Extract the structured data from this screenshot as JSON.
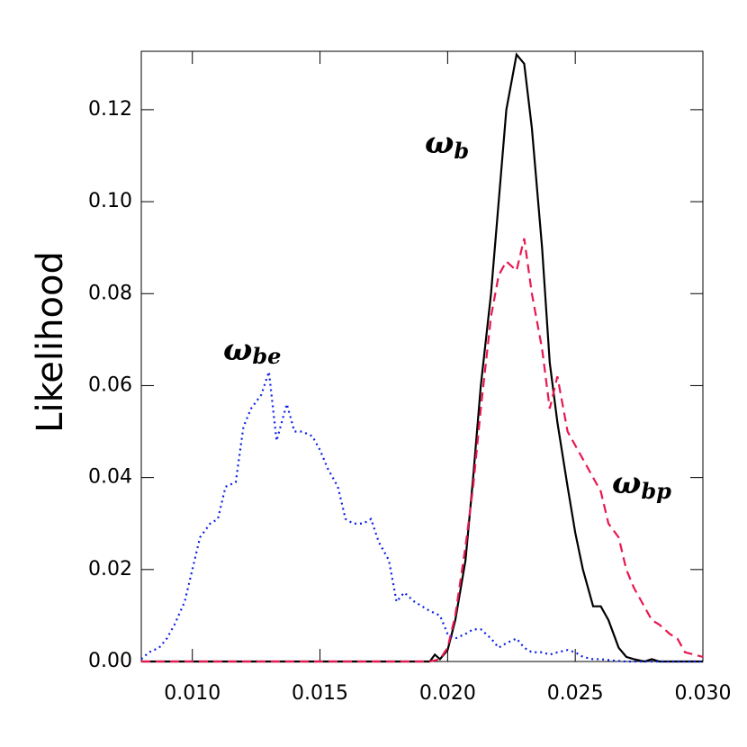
{
  "chart_data": {
    "type": "line",
    "y_label": "Likelihood",
    "xlim": [
      0.008,
      0.03
    ],
    "ylim": [
      0,
      0.1327
    ],
    "xticks": [
      {
        "value": 0.01,
        "label": "0.010"
      },
      {
        "value": 0.015,
        "label": "0.015"
      },
      {
        "value": 0.02,
        "label": "0.020"
      },
      {
        "value": 0.025,
        "label": "0.025"
      },
      {
        "value": 0.03,
        "label": "0.030"
      }
    ],
    "yticks": [
      {
        "value": 0,
        "label": "0.00"
      },
      {
        "value": 0.02,
        "label": "0.02"
      },
      {
        "value": 0.04,
        "label": "0.04"
      },
      {
        "value": 0.06,
        "label": "0.06"
      },
      {
        "value": 0.08,
        "label": "0.08"
      },
      {
        "value": 0.1,
        "label": "0.10"
      },
      {
        "value": 0.12,
        "label": "0.12"
      }
    ],
    "annotations": [
      {
        "base": "ω",
        "sub": "b"
      },
      {
        "base": "ω",
        "sub": "be"
      },
      {
        "base": "ω",
        "sub": "bp"
      }
    ],
    "series": [
      {
        "color": "#000000",
        "dash": "solid",
        "x": [
          0.008,
          0.0193,
          0.0195,
          0.0197,
          0.02,
          0.0203,
          0.0207,
          0.021,
          0.0213,
          0.0217,
          0.022,
          0.0223,
          0.0227,
          0.023,
          0.0233,
          0.0237,
          0.024,
          0.0243,
          0.0247,
          0.025,
          0.0253,
          0.0257,
          0.026,
          0.0263,
          0.0267,
          0.027,
          0.0273,
          0.0277,
          0.028,
          0.0283,
          0.03
        ],
        "values": [
          0,
          0,
          0.0015,
          0.0005,
          0.0025,
          0.009,
          0.022,
          0.04,
          0.06,
          0.08,
          0.1,
          0.12,
          0.132,
          0.13,
          0.116,
          0.09,
          0.065,
          0.052,
          0.038,
          0.028,
          0.02,
          0.012,
          0.012,
          0.009,
          0.003,
          0.001,
          0.0005,
          0,
          0.0005,
          0,
          0
        ]
      },
      {
        "color": "#e8174f",
        "dash": "dashed",
        "x": [
          0.008,
          0.0193,
          0.0197,
          0.02,
          0.0203,
          0.0207,
          0.021,
          0.0213,
          0.0217,
          0.022,
          0.0223,
          0.0227,
          0.023,
          0.0233,
          0.0237,
          0.024,
          0.0243,
          0.0247,
          0.025,
          0.0253,
          0.0257,
          0.026,
          0.0263,
          0.0267,
          0.027,
          0.0273,
          0.0277,
          0.028,
          0.0283,
          0.0287,
          0.029,
          0.0293,
          0.03
        ],
        "values": [
          0,
          0,
          0.0005,
          0.003,
          0.01,
          0.025,
          0.038,
          0.055,
          0.075,
          0.084,
          0.087,
          0.085,
          0.092,
          0.08,
          0.068,
          0.055,
          0.062,
          0.05,
          0.047,
          0.044,
          0.04,
          0.037,
          0.03,
          0.027,
          0.02,
          0.016,
          0.012,
          0.009,
          0.008,
          0.006,
          0.005,
          0.002,
          0.001
        ]
      },
      {
        "color": "#0a1ee6",
        "dash": "dotted",
        "x": [
          0.008,
          0.0083,
          0.0087,
          0.009,
          0.0093,
          0.0097,
          0.01,
          0.0103,
          0.0107,
          0.011,
          0.0113,
          0.0117,
          0.012,
          0.0123,
          0.0127,
          0.013,
          0.0133,
          0.0137,
          0.014,
          0.0143,
          0.0147,
          0.015,
          0.0153,
          0.0157,
          0.016,
          0.0163,
          0.0167,
          0.017,
          0.0173,
          0.0177,
          0.018,
          0.0183,
          0.0187,
          0.019,
          0.0193,
          0.0197,
          0.02,
          0.0203,
          0.0207,
          0.021,
          0.0213,
          0.0217,
          0.022,
          0.0223,
          0.0227,
          0.023,
          0.0233,
          0.0237,
          0.024,
          0.0243,
          0.0247,
          0.025,
          0.0253,
          0.0257,
          0.026,
          0.0265,
          0.027,
          0.03
        ],
        "values": [
          0.0005,
          0.002,
          0.003,
          0.005,
          0.008,
          0.013,
          0.02,
          0.027,
          0.03,
          0.031,
          0.038,
          0.039,
          0.051,
          0.055,
          0.058,
          0.063,
          0.048,
          0.056,
          0.05,
          0.05,
          0.049,
          0.046,
          0.042,
          0.038,
          0.031,
          0.03,
          0.03,
          0.031,
          0.026,
          0.022,
          0.013,
          0.015,
          0.013,
          0.012,
          0.011,
          0.01,
          0.006,
          0.005,
          0.006,
          0.007,
          0.007,
          0.005,
          0.003,
          0.004,
          0.005,
          0.003,
          0.002,
          0.002,
          0.0015,
          0.002,
          0.0025,
          0.002,
          0.001,
          0.0005,
          0.0005,
          0.0002,
          0,
          0
        ]
      }
    ]
  }
}
